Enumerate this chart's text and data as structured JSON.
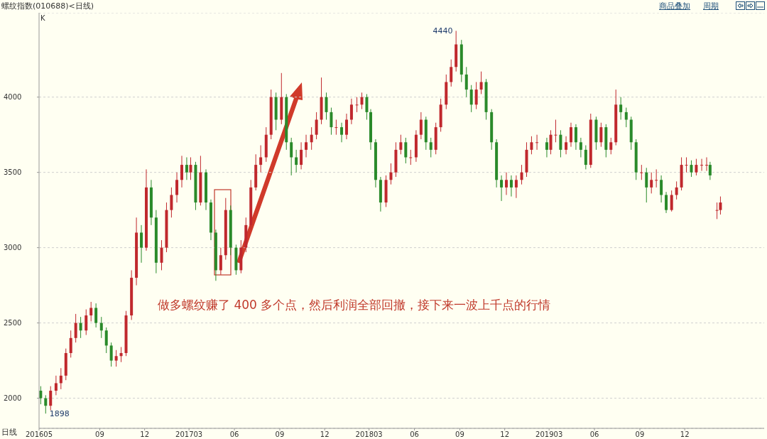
{
  "chart_data": {
    "type": "candlestick",
    "title": "螺纹指数(010688)<日线)",
    "annotations": [
      "K",
      "日线",
      "做多螺纹赚了 400 多个点，然后利润全部回撤，接下来一波上千点的行情",
      "商品叠加",
      "周期",
      {
        "text": "4440",
        "x": "2018-08-25",
        "y": 4440
      },
      {
        "text": "1898",
        "x": "2016-05-15",
        "y": 1898
      }
    ],
    "colors": [
      "#2a8a2a",
      "#2a8a2a",
      "#c0282d",
      "#c0282d",
      "#c0282d",
      "#c0282d",
      "#c0282d",
      "#c0282d",
      "#2a8a2a",
      "#c0282d",
      "#c0282d",
      "#2a8a2a",
      "#2a8a2a",
      "#2a8a2a",
      "#2a8a2a",
      "#c0282d",
      "#c0282d",
      "#c0282d",
      "#c0282d",
      "#c0282d",
      "#2a8a2a",
      "#c0282d",
      "#2a8a2a",
      "#2a8a2a",
      "#c0282d",
      "#c0282d",
      "#c0282d",
      "#c0282d",
      "#c0282d",
      "#2a8a2a",
      "#c0282d",
      "#2a8a2a",
      "#c0282d",
      "#2a8a2a",
      "#2a8a2a",
      "#2a8a2a",
      "#c0282d",
      "#c0282d",
      "#2a8a2a",
      "#2a8a2a",
      "#c0282d",
      "#c0282d",
      "#c0282d",
      "#c0282d",
      "#c0282d",
      "#c0282d",
      "#c0282d",
      "#2a8a2a",
      "#c0282d",
      "#2a8a2a",
      "#2a8a2a",
      "#2a8a2a",
      "#c0282d",
      "#c0282d",
      "#c0282d",
      "#c0282d",
      "#c0282d",
      "#2a8a2a",
      "#2a8a2a",
      "#c0282d",
      "#2a8a2a",
      "#c0282d",
      "#c0282d",
      "#c0282d",
      "#c0282d",
      "#2a8a2a",
      "#2a8a2a",
      "#2a8a2a",
      "#2a8a2a",
      "#c0282d",
      "#c0282d",
      "#c0282d",
      "#c0282d",
      "#2a8a2a",
      "#c0282d",
      "#c0282d",
      "#c0282d",
      "#2a8a2a",
      "#2a8a2a",
      "#c0282d",
      "#c0282d",
      "#c0282d",
      "#c0282d",
      "#c0282d",
      "#2a8a2a",
      "#2a8a2a",
      "#2a8a2a",
      "#c0282d",
      "#c0282d",
      "#2a8a2a",
      "#2a8a2a",
      "#2a8a2a",
      "#2a8a2a",
      "#c0282d",
      "#2a8a2a",
      "#c0282d",
      "#c0282d",
      "#c0282d",
      "#c0282d",
      "#c0282d",
      "#2a8a2a",
      "#c0282d",
      "#c0282d",
      "#2a8a2a",
      "#c0282d",
      "#c0282d",
      "#2a8a2a",
      "#2a8a2a",
      "#2a8a2a",
      "#c0282d",
      "#2a8a2a",
      "#c0282d",
      "#2a8a2a",
      "#c0282d",
      "#c0282d",
      "#2a8a2a",
      "#2a8a2a",
      "#2a8a2a",
      "#2a8a2a",
      "#c0282d",
      "#2a8a2a",
      "#c0282d",
      "#c0282d",
      "#2a8a2a",
      "#2a8a2a",
      "#c0282d",
      "#c0282d",
      "#c0282d",
      "#c0282d",
      "#2a8a2a",
      "#c0282d",
      "#c0282d",
      "#c0282d",
      "#2a8a2a",
      "#c0282d",
      "#c0282d"
    ],
    "xlim": [
      "2016-05-01",
      "2020-05-10"
    ],
    "xticks": [
      {
        "value": "2016-05",
        "label": "201605"
      },
      {
        "value": "2016-09",
        "label": "09"
      },
      {
        "value": "2016-12",
        "label": "12"
      },
      {
        "value": "2017-03",
        "label": "201703"
      },
      {
        "value": "2017-06",
        "label": "06"
      },
      {
        "value": "2017-09",
        "label": "09"
      },
      {
        "value": "2017-12",
        "label": "12"
      },
      {
        "value": "2018-03",
        "label": "201803"
      },
      {
        "value": "2018-06",
        "label": "06"
      },
      {
        "value": "2018-09",
        "label": "09"
      },
      {
        "value": "2018-12",
        "label": "12"
      },
      {
        "value": "2019-03",
        "label": "201903"
      },
      {
        "value": "2019-06",
        "label": "06"
      },
      {
        "value": "2019-09",
        "label": "09"
      },
      {
        "value": "2019-12",
        "label": "12"
      }
    ],
    "ylim": [
      1800,
      4560
    ],
    "yticks": [
      2000,
      2500,
      3000,
      3500,
      4000
    ],
    "grid": "y",
    "x": [
      "2016-05-05",
      "2016-05-15",
      "2016-05-25",
      "2016-06-05",
      "2016-06-15",
      "2016-06-25",
      "2016-07-05",
      "2016-07-15",
      "2016-07-25",
      "2016-08-05",
      "2016-08-15",
      "2016-08-25",
      "2016-09-05",
      "2016-09-15",
      "2016-09-25",
      "2016-10-05",
      "2016-10-15",
      "2016-10-25",
      "2016-11-05",
      "2016-11-15",
      "2016-11-25",
      "2016-12-05",
      "2016-12-15",
      "2016-12-25",
      "2017-01-05",
      "2017-01-15",
      "2017-01-25",
      "2017-02-05",
      "2017-02-15",
      "2017-02-25",
      "2017-03-05",
      "2017-03-15",
      "2017-03-25",
      "2017-04-05",
      "2017-04-15",
      "2017-04-25",
      "2017-05-05",
      "2017-05-15",
      "2017-05-25",
      "2017-06-05",
      "2017-06-15",
      "2017-06-25",
      "2017-07-05",
      "2017-07-15",
      "2017-07-25",
      "2017-08-05",
      "2017-08-15",
      "2017-08-25",
      "2017-09-05",
      "2017-09-15",
      "2017-09-25",
      "2017-10-05",
      "2017-10-15",
      "2017-10-25",
      "2017-11-05",
      "2017-11-15",
      "2017-11-25",
      "2017-12-05",
      "2017-12-15",
      "2017-12-25",
      "2018-01-05",
      "2018-01-15",
      "2018-01-25",
      "2018-02-05",
      "2018-02-15",
      "2018-02-25",
      "2018-03-05",
      "2018-03-15",
      "2018-03-25",
      "2018-04-05",
      "2018-04-15",
      "2018-04-25",
      "2018-05-05",
      "2018-05-15",
      "2018-05-25",
      "2018-06-05",
      "2018-06-15",
      "2018-06-25",
      "2018-07-05",
      "2018-07-15",
      "2018-07-25",
      "2018-08-05",
      "2018-08-15",
      "2018-08-25",
      "2018-09-05",
      "2018-09-15",
      "2018-09-25",
      "2018-10-05",
      "2018-10-15",
      "2018-10-25",
      "2018-11-05",
      "2018-11-15",
      "2018-11-25",
      "2018-12-05",
      "2018-12-15",
      "2018-12-25",
      "2019-01-05",
      "2019-01-15",
      "2019-01-25",
      "2019-02-05",
      "2019-02-25",
      "2019-03-05",
      "2019-03-15",
      "2019-03-25",
      "2019-04-05",
      "2019-04-15",
      "2019-04-25",
      "2019-05-05",
      "2019-05-15",
      "2019-05-25",
      "2019-06-05",
      "2019-06-15",
      "2019-06-25",
      "2019-07-05",
      "2019-07-15",
      "2019-07-25",
      "2019-08-05",
      "2019-08-15",
      "2019-08-25",
      "2019-09-05",
      "2019-09-15",
      "2019-09-25",
      "2019-10-05",
      "2019-10-15",
      "2019-10-25",
      "2019-11-05",
      "2019-11-15",
      "2019-11-25",
      "2019-12-05",
      "2019-12-15",
      "2019-12-25",
      "2020-01-05",
      "2020-01-15",
      "2020-01-22",
      "2020-02-05",
      "2020-02-12"
    ],
    "ohlc": [
      [
        2050,
        2080,
        1960,
        2000
      ],
      [
        2000,
        2020,
        1898,
        1950
      ],
      [
        1950,
        2080,
        1920,
        2050
      ],
      [
        2050,
        2150,
        2020,
        2100
      ],
      [
        2100,
        2200,
        2060,
        2150
      ],
      [
        2150,
        2330,
        2120,
        2300
      ],
      [
        2300,
        2450,
        2270,
        2400
      ],
      [
        2400,
        2560,
        2370,
        2500
      ],
      [
        2500,
        2540,
        2400,
        2450
      ],
      [
        2450,
        2590,
        2420,
        2550
      ],
      [
        2550,
        2640,
        2510,
        2600
      ],
      [
        2600,
        2630,
        2470,
        2500
      ],
      [
        2500,
        2540,
        2400,
        2450
      ],
      [
        2450,
        2470,
        2300,
        2350
      ],
      [
        2350,
        2370,
        2210,
        2250
      ],
      [
        2250,
        2320,
        2210,
        2280
      ],
      [
        2280,
        2340,
        2240,
        2300
      ],
      [
        2300,
        2580,
        2280,
        2550
      ],
      [
        2550,
        2850,
        2520,
        2800
      ],
      [
        2800,
        3200,
        2750,
        3100
      ],
      [
        3100,
        3150,
        2900,
        3000
      ],
      [
        3000,
        3520,
        2980,
        3400
      ],
      [
        3400,
        3450,
        3150,
        3200
      ],
      [
        3200,
        3250,
        2830,
        2900
      ],
      [
        2900,
        3050,
        2850,
        3000
      ],
      [
        3000,
        3300,
        2970,
        3250
      ],
      [
        3250,
        3400,
        3200,
        3350
      ],
      [
        3350,
        3500,
        3300,
        3450
      ],
      [
        3450,
        3610,
        3400,
        3550
      ],
      [
        3550,
        3600,
        3450,
        3500
      ],
      [
        3500,
        3600,
        3450,
        3550
      ],
      [
        3550,
        3570,
        3250,
        3300
      ],
      [
        3300,
        3610,
        3280,
        3500
      ],
      [
        3500,
        3520,
        3250,
        3300
      ],
      [
        3300,
        3320,
        3050,
        3100
      ],
      [
        3100,
        3120,
        2780,
        2850
      ],
      [
        2850,
        3000,
        2820,
        2950
      ],
      [
        2950,
        3330,
        2920,
        3250
      ],
      [
        3250,
        3280,
        2950,
        3000
      ],
      [
        3000,
        3020,
        2820,
        2850
      ],
      [
        2850,
        3050,
        2830,
        3000
      ],
      [
        3000,
        3200,
        2970,
        3150
      ],
      [
        3150,
        3450,
        3120,
        3400
      ],
      [
        3400,
        3620,
        3380,
        3550
      ],
      [
        3550,
        3680,
        3500,
        3600
      ],
      [
        3600,
        3800,
        3570,
        3750
      ],
      [
        3750,
        4050,
        3720,
        4000
      ],
      [
        4000,
        4030,
        3780,
        3850
      ],
      [
        3850,
        4160,
        3820,
        4000
      ],
      [
        4000,
        4020,
        3650,
        3700
      ],
      [
        3700,
        3730,
        3480,
        3600
      ],
      [
        3600,
        3650,
        3500,
        3550
      ],
      [
        3550,
        3700,
        3520,
        3650
      ],
      [
        3650,
        3750,
        3600,
        3700
      ],
      [
        3700,
        3800,
        3650,
        3750
      ],
      [
        3750,
        3900,
        3720,
        3850
      ],
      [
        3850,
        4130,
        3820,
        4000
      ],
      [
        4000,
        4030,
        3850,
        3900
      ],
      [
        3900,
        3930,
        3750,
        3800
      ],
      [
        3800,
        3850,
        3750,
        3800
      ],
      [
        3800,
        3830,
        3700,
        3750
      ],
      [
        3750,
        3890,
        3720,
        3850
      ],
      [
        3850,
        3990,
        3820,
        3950
      ],
      [
        3950,
        4000,
        3900,
        3950
      ],
      [
        3950,
        4030,
        3920,
        4000
      ],
      [
        4000,
        4020,
        3850,
        3900
      ],
      [
        3900,
        3920,
        3650,
        3700
      ],
      [
        3700,
        3720,
        3400,
        3450
      ],
      [
        3450,
        3470,
        3240,
        3300
      ],
      [
        3300,
        3480,
        3270,
        3450
      ],
      [
        3450,
        3560,
        3420,
        3500
      ],
      [
        3500,
        3700,
        3470,
        3650
      ],
      [
        3650,
        3750,
        3620,
        3700
      ],
      [
        3700,
        3730,
        3560,
        3600
      ],
      [
        3600,
        3650,
        3550,
        3600
      ],
      [
        3600,
        3780,
        3570,
        3750
      ],
      [
        3750,
        3900,
        3720,
        3850
      ],
      [
        3850,
        3870,
        3650,
        3700
      ],
      [
        3700,
        3730,
        3600,
        3650
      ],
      [
        3650,
        3830,
        3620,
        3800
      ],
      [
        3800,
        3990,
        3770,
        3950
      ],
      [
        3950,
        4150,
        3920,
        4100
      ],
      [
        4100,
        4250,
        4070,
        4200
      ],
      [
        4200,
        4440,
        4170,
        4350
      ],
      [
        4350,
        4380,
        4100,
        4150
      ],
      [
        4150,
        4200,
        4000,
        4050
      ],
      [
        4050,
        4080,
        3900,
        3950
      ],
      [
        3950,
        4100,
        3920,
        4050
      ],
      [
        4050,
        4170,
        4020,
        4100
      ],
      [
        4100,
        4120,
        3850,
        3900
      ],
      [
        3900,
        3920,
        3650,
        3700
      ],
      [
        3700,
        3720,
        3400,
        3450
      ],
      [
        3450,
        3480,
        3310,
        3400
      ],
      [
        3400,
        3500,
        3350,
        3450
      ],
      [
        3450,
        3480,
        3340,
        3400
      ],
      [
        3400,
        3480,
        3330,
        3450
      ],
      [
        3450,
        3550,
        3420,
        3500
      ],
      [
        3500,
        3700,
        3470,
        3650
      ],
      [
        3650,
        3740,
        3620,
        3700
      ],
      [
        3700,
        3750,
        3650,
        3700
      ],
      [
        3700,
        3730,
        3600,
        3650
      ],
      [
        3650,
        3780,
        3620,
        3750
      ],
      [
        3750,
        3850,
        3700,
        3750
      ],
      [
        3750,
        3780,
        3600,
        3650
      ],
      [
        3650,
        3740,
        3620,
        3700
      ],
      [
        3700,
        3830,
        3670,
        3800
      ],
      [
        3800,
        3820,
        3650,
        3700
      ],
      [
        3700,
        3730,
        3600,
        3650
      ],
      [
        3650,
        3680,
        3520,
        3550
      ],
      [
        3550,
        3890,
        3530,
        3850
      ],
      [
        3850,
        3870,
        3650,
        3700
      ],
      [
        3700,
        3830,
        3670,
        3800
      ],
      [
        3800,
        3820,
        3600,
        3650
      ],
      [
        3650,
        3730,
        3620,
        3700
      ],
      [
        3700,
        4050,
        3680,
        3950
      ],
      [
        3950,
        4000,
        3850,
        3900
      ],
      [
        3900,
        3930,
        3800,
        3850
      ],
      [
        3850,
        3870,
        3650,
        3700
      ],
      [
        3700,
        3720,
        3450,
        3500
      ],
      [
        3500,
        3550,
        3450,
        3500
      ],
      [
        3500,
        3530,
        3300,
        3400
      ],
      [
        3400,
        3500,
        3360,
        3450
      ],
      [
        3450,
        3520,
        3400,
        3450
      ],
      [
        3450,
        3480,
        3300,
        3350
      ],
      [
        3350,
        3370,
        3230,
        3250
      ],
      [
        3250,
        3380,
        3240,
        3350
      ],
      [
        3350,
        3440,
        3320,
        3400
      ],
      [
        3400,
        3600,
        3380,
        3550
      ],
      [
        3550,
        3600,
        3500,
        3550
      ],
      [
        3550,
        3580,
        3470,
        3500
      ],
      [
        3500,
        3590,
        3480,
        3550
      ],
      [
        3550,
        3590,
        3510,
        3550
      ],
      [
        3550,
        3600,
        3510,
        3550
      ],
      [
        3550,
        3570,
        3450,
        3480
      ],
      [
        3250,
        3300,
        3190,
        3250
      ],
      [
        3250,
        3340,
        3220,
        3300
      ]
    ]
  }
}
